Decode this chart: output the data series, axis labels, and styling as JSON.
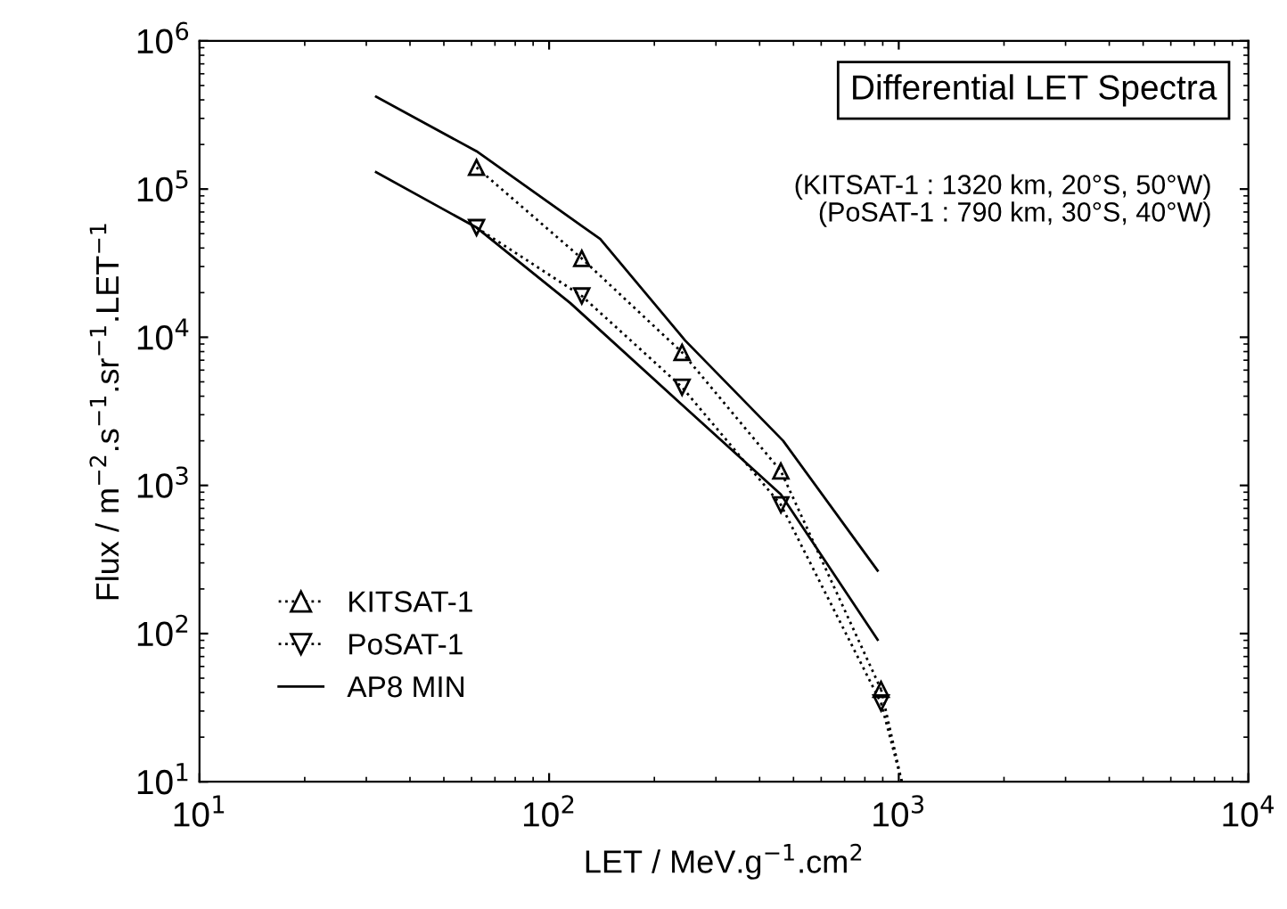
{
  "chart_data": {
    "type": "line",
    "title": "Differential LET Spectra",
    "xlabel": "LET / MeV.g$^{−1}$.cm$^{2}$",
    "ylabel": "Flux / m$^{−2}$.s$^{−1}$.sr$^{−1}$.LET$^{−1}$",
    "annotations": [
      "(KITSAT-1 : 1320 km, 20°S, 50°W)\n(PoSAT-1 : 790 km, 30°S, 40°W)"
    ],
    "log": "xy",
    "xlim": [
      10,
      10000
    ],
    "ylim": [
      10,
      1000000
    ],
    "xticks": [
      {
        "value": 10,
        "label": "10$^{1}$"
      },
      {
        "value": 100,
        "label": "10$^{2}$"
      },
      {
        "value": 1000,
        "label": "10$^{3}$"
      },
      {
        "value": 10000,
        "label": "10$^{4}$"
      }
    ],
    "yticks": [
      {
        "value": 10,
        "label": "10$^{1}$"
      },
      {
        "value": 100,
        "label": "10$^{2}$"
      },
      {
        "value": 1000,
        "label": "10$^{3}$"
      },
      {
        "value": 10000,
        "label": "10$^{4}$"
      },
      {
        "value": 100000,
        "label": "10$^{5}$"
      },
      {
        "value": 1000000,
        "label": "10$^{6}$"
      }
    ],
    "grid": false,
    "legend": "bottom left",
    "series": [
      {
        "name": "KITSAT-1",
        "color": "#000000",
        "marker": "triangle",
        "line_style": "dotted",
        "x": [
          62,
          124,
          240,
          460,
          890
        ],
        "values": [
          140000,
          34000,
          7900,
          1250,
          42
        ]
      },
      {
        "name": "PoSAT-1",
        "color": "#000000",
        "marker": "triangle_down",
        "line_style": "dotted",
        "x": [
          62,
          124,
          240,
          460,
          890
        ],
        "values": [
          55000,
          19000,
          4600,
          740,
          34
        ]
      },
      {
        "color": "#000000",
        "marker": "none",
        "line_style": "dotted",
        "x": [
          890,
          1020
        ],
        "values": [
          42,
          10
        ]
      },
      {
        "color": "#000000",
        "marker": "none",
        "line_style": "dotted",
        "x": [
          890,
          1020
        ],
        "values": [
          34,
          10
        ]
      },
      {
        "name": "AP8 MIN",
        "color": "#000000",
        "marker": "none",
        "line_style": "solid",
        "x": [
          32,
          62,
          140,
          245,
          467,
          870
        ],
        "values": [
          420000,
          180000,
          46000,
          9500,
          2000,
          266
        ]
      },
      {
        "color": "#000000",
        "marker": "none",
        "line_style": "solid",
        "x": [
          32,
          62,
          115,
          240,
          460,
          870
        ],
        "values": [
          130000,
          55000,
          17000,
          3500,
          870,
          91
        ]
      }
    ]
  }
}
